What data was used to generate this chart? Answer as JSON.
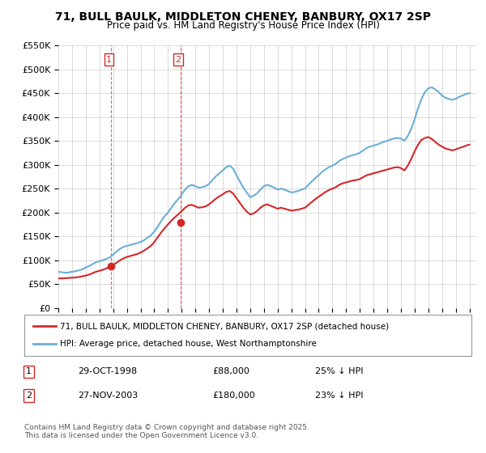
{
  "title": "71, BULL BAULK, MIDDLETON CHENEY, BANBURY, OX17 2SP",
  "subtitle": "Price paid vs. HM Land Registry's House Price Index (HPI)",
  "ylabel": "",
  "xlabel": "",
  "ylim": [
    0,
    550000
  ],
  "yticks": [
    0,
    50000,
    100000,
    150000,
    200000,
    250000,
    300000,
    350000,
    400000,
    450000,
    500000,
    550000
  ],
  "ytick_labels": [
    "£0",
    "£50K",
    "£100K",
    "£150K",
    "£200K",
    "£250K",
    "£300K",
    "£350K",
    "£400K",
    "£450K",
    "£500K",
    "£550K"
  ],
  "xlim_start": 1995.0,
  "xlim_end": 2025.5,
  "sale1_x": 1998.83,
  "sale1_y": 88000,
  "sale1_label": "1",
  "sale1_date": "29-OCT-1998",
  "sale1_price": "£88,000",
  "sale1_hpi": "25% ↓ HPI",
  "sale2_x": 2003.9,
  "sale2_y": 180000,
  "sale2_label": "2",
  "sale2_date": "27-NOV-2003",
  "sale2_price": "£180,000",
  "sale2_hpi": "23% ↓ HPI",
  "hpi_color": "#6baed6",
  "price_color": "#d62728",
  "vline_color": "#d62728",
  "background_color": "#ffffff",
  "grid_color": "#cccccc",
  "legend1": "71, BULL BAULK, MIDDLETON CHENEY, BANBURY, OX17 2SP (detached house)",
  "legend2": "HPI: Average price, detached house, West Northamptonshire",
  "footnote": "Contains HM Land Registry data © Crown copyright and database right 2025.\nThis data is licensed under the Open Government Licence v3.0.",
  "hpi_data_x": [
    1995.0,
    1995.25,
    1995.5,
    1995.75,
    1996.0,
    1996.25,
    1996.5,
    1996.75,
    1997.0,
    1997.25,
    1997.5,
    1997.75,
    1998.0,
    1998.25,
    1998.5,
    1998.75,
    1999.0,
    1999.25,
    1999.5,
    1999.75,
    2000.0,
    2000.25,
    2000.5,
    2000.75,
    2001.0,
    2001.25,
    2001.5,
    2001.75,
    2002.0,
    2002.25,
    2002.5,
    2002.75,
    2003.0,
    2003.25,
    2003.5,
    2003.75,
    2004.0,
    2004.25,
    2004.5,
    2004.75,
    2005.0,
    2005.25,
    2005.5,
    2005.75,
    2006.0,
    2006.25,
    2006.5,
    2006.75,
    2007.0,
    2007.25,
    2007.5,
    2007.75,
    2008.0,
    2008.25,
    2008.5,
    2008.75,
    2009.0,
    2009.25,
    2009.5,
    2009.75,
    2010.0,
    2010.25,
    2010.5,
    2010.75,
    2011.0,
    2011.25,
    2011.5,
    2011.75,
    2012.0,
    2012.25,
    2012.5,
    2012.75,
    2013.0,
    2013.25,
    2013.5,
    2013.75,
    2014.0,
    2014.25,
    2014.5,
    2014.75,
    2015.0,
    2015.25,
    2015.5,
    2015.75,
    2016.0,
    2016.25,
    2016.5,
    2016.75,
    2017.0,
    2017.25,
    2017.5,
    2017.75,
    2018.0,
    2018.25,
    2018.5,
    2018.75,
    2019.0,
    2019.25,
    2019.5,
    2019.75,
    2020.0,
    2020.25,
    2020.5,
    2020.75,
    2021.0,
    2021.25,
    2021.5,
    2021.75,
    2022.0,
    2022.25,
    2022.5,
    2022.75,
    2023.0,
    2023.25,
    2023.5,
    2023.75,
    2024.0,
    2024.25,
    2024.5,
    2024.75,
    2025.0
  ],
  "hpi_data_y": [
    76000,
    75000,
    74000,
    74500,
    76000,
    77000,
    79000,
    81000,
    85000,
    88000,
    92000,
    96000,
    98000,
    100000,
    103000,
    106000,
    112000,
    118000,
    124000,
    128000,
    130000,
    132000,
    134000,
    136000,
    138000,
    142000,
    147000,
    152000,
    160000,
    170000,
    182000,
    192000,
    200000,
    210000,
    220000,
    228000,
    238000,
    248000,
    255000,
    258000,
    255000,
    252000,
    253000,
    255000,
    260000,
    268000,
    276000,
    282000,
    288000,
    295000,
    298000,
    292000,
    278000,
    265000,
    252000,
    242000,
    232000,
    235000,
    240000,
    248000,
    255000,
    258000,
    255000,
    252000,
    248000,
    250000,
    248000,
    245000,
    242000,
    243000,
    245000,
    248000,
    250000,
    258000,
    265000,
    272000,
    278000,
    285000,
    290000,
    295000,
    298000,
    302000,
    308000,
    312000,
    315000,
    318000,
    320000,
    322000,
    325000,
    330000,
    335000,
    338000,
    340000,
    342000,
    345000,
    348000,
    350000,
    353000,
    355000,
    356000,
    355000,
    350000,
    360000,
    375000,
    395000,
    418000,
    438000,
    452000,
    460000,
    462000,
    458000,
    452000,
    445000,
    440000,
    438000,
    436000,
    438000,
    442000,
    445000,
    448000,
    450000
  ],
  "price_data_x": [
    1995.0,
    1995.25,
    1995.5,
    1995.75,
    1996.0,
    1996.25,
    1996.5,
    1996.75,
    1997.0,
    1997.25,
    1997.5,
    1997.75,
    1998.0,
    1998.25,
    1998.5,
    1998.75,
    1999.0,
    1999.25,
    1999.5,
    1999.75,
    2000.0,
    2000.25,
    2000.5,
    2000.75,
    2001.0,
    2001.25,
    2001.5,
    2001.75,
    2002.0,
    2002.25,
    2002.5,
    2002.75,
    2003.0,
    2003.25,
    2003.5,
    2003.75,
    2004.0,
    2004.25,
    2004.5,
    2004.75,
    2005.0,
    2005.25,
    2005.5,
    2005.75,
    2006.0,
    2006.25,
    2006.5,
    2006.75,
    2007.0,
    2007.25,
    2007.5,
    2007.75,
    2008.0,
    2008.25,
    2008.5,
    2008.75,
    2009.0,
    2009.25,
    2009.5,
    2009.75,
    2010.0,
    2010.25,
    2010.5,
    2010.75,
    2011.0,
    2011.25,
    2011.5,
    2011.75,
    2012.0,
    2012.25,
    2012.5,
    2012.75,
    2013.0,
    2013.25,
    2013.5,
    2013.75,
    2014.0,
    2014.25,
    2014.5,
    2014.75,
    2015.0,
    2015.25,
    2015.5,
    2015.75,
    2016.0,
    2016.25,
    2016.5,
    2016.75,
    2017.0,
    2017.25,
    2017.5,
    2017.75,
    2018.0,
    2018.25,
    2018.5,
    2018.75,
    2019.0,
    2019.25,
    2019.5,
    2019.75,
    2020.0,
    2020.25,
    2020.5,
    2020.75,
    2021.0,
    2021.25,
    2021.5,
    2021.75,
    2022.0,
    2022.25,
    2022.5,
    2022.75,
    2023.0,
    2023.25,
    2023.5,
    2023.75,
    2024.0,
    2024.25,
    2024.5,
    2024.75,
    2025.0
  ],
  "price_data_y": [
    62000,
    62000,
    62500,
    63000,
    63500,
    64000,
    65000,
    66500,
    68000,
    70000,
    73000,
    76000,
    78000,
    80000,
    83000,
    86000,
    90000,
    95000,
    100000,
    104000,
    107000,
    109000,
    111000,
    113000,
    116000,
    120000,
    125000,
    130000,
    138000,
    148000,
    158000,
    167000,
    175000,
    183000,
    190000,
    196000,
    203000,
    210000,
    215000,
    216000,
    213000,
    210000,
    211000,
    213000,
    217000,
    223000,
    229000,
    234000,
    238000,
    243000,
    245000,
    240000,
    230000,
    220000,
    210000,
    202000,
    196000,
    198000,
    203000,
    210000,
    215000,
    217000,
    214000,
    211000,
    208000,
    210000,
    208000,
    206000,
    204000,
    205000,
    206000,
    208000,
    210000,
    216000,
    222000,
    228000,
    233000,
    238000,
    243000,
    247000,
    250000,
    253000,
    258000,
    261000,
    263000,
    265000,
    267000,
    268000,
    270000,
    274000,
    278000,
    280000,
    282000,
    284000,
    286000,
    288000,
    290000,
    292000,
    294000,
    295000,
    293000,
    288000,
    298000,
    312000,
    328000,
    342000,
    352000,
    356000,
    358000,
    354000,
    348000,
    342000,
    338000,
    334000,
    332000,
    330000,
    332000,
    335000,
    337000,
    340000,
    342000
  ]
}
